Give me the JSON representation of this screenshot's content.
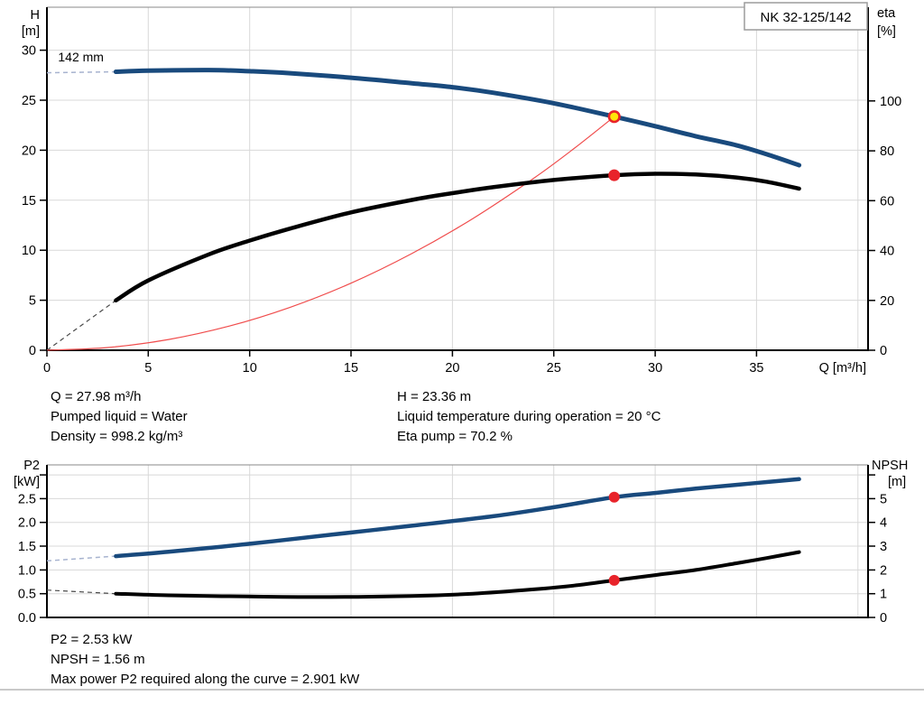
{
  "duty_results": {
    "q": "Q = 27.98 m³/h",
    "pumped_liquid": "Pumped liquid = Water",
    "density": "Density = 998.2 kg/m³",
    "h": "H = 23.36 m",
    "liquid_temp": "Liquid temperature during operation = 20 °C",
    "eta_pump": "Eta pump = 70.2 %"
  },
  "power_results": {
    "p2": "P2 = 2.53 kW",
    "npsh": "NPSH = 1.56 m",
    "max_power": "Max power P2 required along the curve = 2.901 kW"
  },
  "colors": {
    "curve_blue": "#194a7d",
    "curve_black": "#000000",
    "dashed_blue": "#a7b3cf",
    "dashed_gray": "#4a4a4a",
    "system_red": "#f04c4c",
    "marker_red": "#e8232a",
    "marker_yellow": "#ffe50a",
    "gridline": "#d8d8d8"
  },
  "chart_data": [
    {
      "type": "line",
      "pump_model": "NK 32-125/142",
      "impeller_label": {
        "text": "142 mm",
        "q": 0.55,
        "value": 28.9
      },
      "x_axis": {
        "label": "Q [m³/h]",
        "min": 0,
        "max": 40.5,
        "ticks": [
          0,
          5,
          10,
          15,
          20,
          25,
          30,
          35
        ],
        "tick_labels": [
          "0",
          "5",
          "10",
          "15",
          "20",
          "25",
          "30",
          "35"
        ],
        "gridlines": [
          5,
          10,
          15,
          20,
          25,
          30,
          35,
          40
        ]
      },
      "y_left": {
        "label_lines": [
          "H",
          "[m]"
        ],
        "min": 0,
        "max": 34.3,
        "ticks": [
          0,
          5,
          10,
          15,
          20,
          25,
          30
        ],
        "tick_labels": [
          "0",
          "5",
          "10",
          "15",
          "20",
          "25",
          "30"
        ]
      },
      "y_right": {
        "label_lines": [
          "eta",
          "[%]"
        ],
        "min": 0,
        "max": 137.6,
        "ticks": [
          0,
          20,
          40,
          60,
          80,
          100
        ],
        "tick_labels": [
          "0",
          "20",
          "40",
          "60",
          "80",
          "100"
        ]
      },
      "series": [
        {
          "name": "head-curve-dashed",
          "axis": "left",
          "style": "dashed",
          "color": "#a7b3cf",
          "width": 1.5,
          "points": [
            [
              0,
              27.75
            ],
            [
              3.4,
              27.85
            ]
          ]
        },
        {
          "name": "eta-curve-dashed",
          "axis": "right",
          "style": "dashed",
          "color": "#4a4a4a",
          "width": 1.2,
          "points": [
            [
              0,
              0
            ],
            [
              3.4,
              20
            ]
          ]
        },
        {
          "name": "system-curve",
          "axis": "left",
          "style": "solid",
          "color": "#f04c4c",
          "width": 1.2,
          "points": [
            [
              0,
              0
            ],
            [
              3,
              0.27
            ],
            [
              6,
              1.07
            ],
            [
              9,
              2.42
            ],
            [
              12,
              4.3
            ],
            [
              15,
              6.71
            ],
            [
              18,
              9.67
            ],
            [
              21,
              13.16
            ],
            [
              24,
              17.19
            ],
            [
              26,
              20.17
            ],
            [
              27.98,
              23.36
            ]
          ]
        },
        {
          "name": "head-curve",
          "axis": "left",
          "style": "solid",
          "color": "#194a7d",
          "width": 5,
          "points": [
            [
              3.4,
              27.85
            ],
            [
              5,
              27.95
            ],
            [
              8,
              28.02
            ],
            [
              10,
              27.9
            ],
            [
              12,
              27.7
            ],
            [
              15,
              27.25
            ],
            [
              18,
              26.7
            ],
            [
              20,
              26.3
            ],
            [
              22,
              25.75
            ],
            [
              25,
              24.7
            ],
            [
              27.98,
              23.36
            ],
            [
              30,
              22.4
            ],
            [
              32,
              21.4
            ],
            [
              34,
              20.5
            ],
            [
              35.5,
              19.6
            ],
            [
              37.1,
              18.5
            ]
          ]
        },
        {
          "name": "eta-curve",
          "axis": "right",
          "style": "solid",
          "color": "#000000",
          "width": 4.5,
          "points": [
            [
              3.4,
              20
            ],
            [
              5,
              28
            ],
            [
              8,
              38.5
            ],
            [
              10,
              44
            ],
            [
              12,
              48.8
            ],
            [
              15,
              55.3
            ],
            [
              18,
              60.3
            ],
            [
              20,
              63
            ],
            [
              22,
              65.4
            ],
            [
              25,
              68.3
            ],
            [
              27.98,
              70.2
            ],
            [
              30,
              70.8
            ],
            [
              32,
              70.5
            ],
            [
              34,
              69.3
            ],
            [
              35.5,
              67.6
            ],
            [
              37.1,
              64.8
            ]
          ]
        }
      ],
      "markers": [
        {
          "name": "duty-point-head",
          "axis": "left",
          "x": 27.98,
          "y": 23.36,
          "r": 5.8,
          "fill": "#ffe50a",
          "stroke": "#e8232a",
          "stroke_width": 2.6
        },
        {
          "name": "duty-point-eta",
          "axis": "right",
          "x": 27.98,
          "y": 70.2,
          "r": 6.5,
          "fill": "#e8232a",
          "stroke": "none",
          "stroke_width": 0
        }
      ]
    },
    {
      "type": "line",
      "x_axis": {
        "label": "",
        "min": 0,
        "max": 40.5,
        "ticks": [],
        "tick_labels": [],
        "gridlines": [
          5,
          10,
          15,
          20,
          25,
          30,
          35,
          40
        ]
      },
      "y_left": {
        "label_lines": [
          "P2",
          "[kW]"
        ],
        "min": 0,
        "max": 3.21,
        "ticks": [
          0,
          0.5,
          1,
          1.5,
          2,
          2.5,
          3
        ],
        "tick_labels": [
          "0.0",
          "0.5",
          "1.0",
          "1.5",
          "2.0",
          "2.5",
          ""
        ]
      },
      "y_right": {
        "label_lines": [
          "NPSH",
          "[m]"
        ],
        "min": 0,
        "max": 6.42,
        "ticks": [
          0,
          1,
          2,
          3,
          4,
          5,
          6
        ],
        "tick_labels": [
          "0",
          "1",
          "2",
          "3",
          "4",
          "5",
          ""
        ]
      },
      "series": [
        {
          "name": "p2-curve-dashed",
          "axis": "left",
          "style": "dashed",
          "color": "#a7b3cf",
          "width": 1.5,
          "points": [
            [
              0,
              1.19
            ],
            [
              3.4,
              1.29
            ]
          ]
        },
        {
          "name": "npsh-curve-dashed",
          "axis": "right",
          "style": "dashed",
          "color": "#4a4a4a",
          "width": 1.2,
          "points": [
            [
              0,
              1.15
            ],
            [
              3.4,
              1.0
            ]
          ]
        },
        {
          "name": "p2-curve",
          "axis": "left",
          "style": "solid",
          "color": "#194a7d",
          "width": 4.5,
          "points": [
            [
              3.4,
              1.29
            ],
            [
              6,
              1.38
            ],
            [
              10,
              1.55
            ],
            [
              14,
              1.74
            ],
            [
              18,
              1.93
            ],
            [
              22,
              2.13
            ],
            [
              25,
              2.32
            ],
            [
              27.98,
              2.53
            ],
            [
              30,
              2.62
            ],
            [
              32,
              2.71
            ],
            [
              34,
              2.79
            ],
            [
              35.5,
              2.85
            ],
            [
              37.1,
              2.91
            ]
          ]
        },
        {
          "name": "npsh-curve",
          "axis": "right",
          "style": "solid",
          "color": "#000000",
          "width": 4,
          "points": [
            [
              3.4,
              1.0
            ],
            [
              6,
              0.93
            ],
            [
              10,
              0.88
            ],
            [
              14,
              0.86
            ],
            [
              18,
              0.9
            ],
            [
              21,
              1.0
            ],
            [
              24,
              1.18
            ],
            [
              26,
              1.34
            ],
            [
              27.98,
              1.56
            ],
            [
              30,
              1.78
            ],
            [
              32,
              2.0
            ],
            [
              34,
              2.28
            ],
            [
              35.5,
              2.5
            ],
            [
              37.1,
              2.75
            ]
          ]
        }
      ],
      "markers": [
        {
          "name": "duty-point-p2",
          "axis": "left",
          "x": 27.98,
          "y": 2.53,
          "r": 6,
          "fill": "#e8232a",
          "stroke": "none",
          "stroke_width": 0
        },
        {
          "name": "duty-point-npsh",
          "axis": "right",
          "x": 27.98,
          "y": 1.56,
          "r": 6,
          "fill": "#e8232a",
          "stroke": "none",
          "stroke_width": 0
        }
      ]
    }
  ]
}
